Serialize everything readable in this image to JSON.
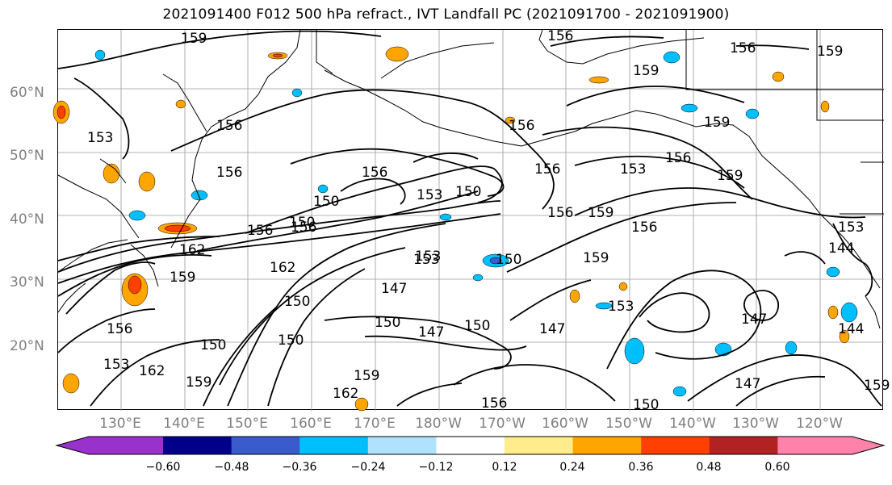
{
  "title": "2021091400 F012 500 hPa refract., IVT Landfall PC (2021091700 - 2021091900)",
  "lat_labels": [
    "60°N",
    "50°N",
    "40°N",
    "30°N",
    "20°N"
  ],
  "lon_labels": [
    "130°E",
    "140°E",
    "150°E",
    "160°E",
    "170°E",
    "180°W",
    "170°W",
    "160°W",
    "150°W",
    "140°W",
    "130°W",
    "120°W"
  ],
  "contour_labels": [
    "159",
    "156",
    "156",
    "159",
    "150",
    "153",
    "156",
    "156",
    "156",
    "159",
    "153",
    "159",
    "156",
    "159",
    "153",
    "156",
    "156",
    "150",
    "153",
    "150",
    "159",
    "156",
    "156",
    "156",
    "162",
    "162",
    "159",
    "150",
    "153",
    "159",
    "156",
    "150",
    "150",
    "147",
    "147",
    "153",
    "153",
    "150",
    "150",
    "147",
    "150",
    "147",
    "162",
    "159",
    "162",
    "159",
    "156",
    "150",
    "144",
    "147",
    "144",
    "153",
    "159",
    "156"
  ],
  "colorbar": {
    "colors": [
      "#9932cc",
      "#00008b",
      "#3a5bcd",
      "#00bfff",
      "#b0e2ff",
      "#ffffff",
      "#ffec8b",
      "#ffa500",
      "#ff4000",
      "#b22222",
      "#ff82ab"
    ],
    "tick_labels": [
      "−0.60",
      "−0.48",
      "−0.36",
      "−0.24",
      "−0.12",
      "0.12",
      "0.24",
      "0.36",
      "0.48",
      "0.60"
    ]
  },
  "colors": {
    "contour": "#000000",
    "grid": "#999999",
    "coast": "#000000",
    "axis_label": "#808080"
  }
}
